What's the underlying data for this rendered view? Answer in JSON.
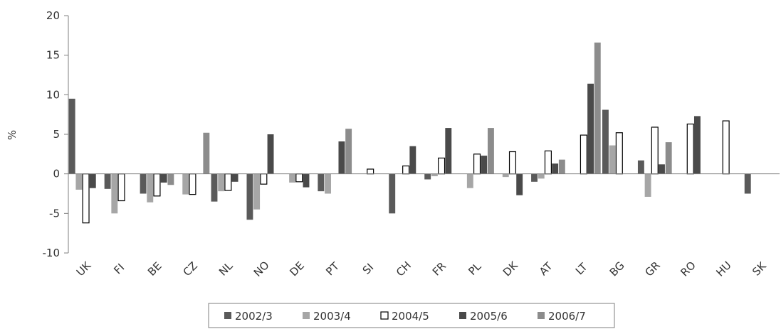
{
  "chart_data": {
    "type": "bar",
    "ylabel": "%",
    "xlabel": "",
    "ylim": [
      -10,
      20
    ],
    "yticks": [
      -10,
      -5,
      0,
      5,
      10,
      15,
      20
    ],
    "legend_position": "bottom",
    "grid": false,
    "categories": [
      "UK",
      "FI",
      "BE",
      "CZ",
      "NL",
      "NO",
      "DE",
      "PT",
      "SI",
      "CH",
      "FR",
      "PL",
      "DK",
      "AT",
      "LT",
      "BG",
      "GR",
      "RO",
      "HU",
      "SK"
    ],
    "series": [
      {
        "name": "2002/3",
        "color": "#5a5a5a",
        "fill": true,
        "values": [
          9.5,
          -1.9,
          -2.5,
          null,
          -3.5,
          -5.8,
          null,
          -2.2,
          null,
          -5.0,
          -0.7,
          null,
          null,
          -1.0,
          null,
          8.1,
          1.7,
          null,
          null,
          -2.5
        ]
      },
      {
        "name": "2003/4",
        "color": "#a6a6a6",
        "fill": true,
        "values": [
          -2.0,
          -5.0,
          -3.6,
          -2.6,
          -2.2,
          -4.5,
          -1.1,
          -2.5,
          null,
          null,
          -0.3,
          -1.8,
          -0.4,
          -0.6,
          null,
          3.6,
          -2.9,
          null,
          null,
          null
        ]
      },
      {
        "name": "2004/5",
        "color": "#ffffff",
        "fill": false,
        "values": [
          -6.2,
          -3.4,
          -2.8,
          -2.6,
          -2.1,
          -1.3,
          -1.0,
          null,
          0.6,
          1.0,
          2.0,
          2.5,
          2.8,
          2.9,
          4.9,
          5.2,
          5.9,
          6.3,
          6.7,
          null
        ]
      },
      {
        "name": "2005/6",
        "color": "#4a4a4a",
        "fill": true,
        "values": [
          -1.8,
          null,
          -1.1,
          null,
          -1.0,
          5.0,
          -1.7,
          4.1,
          null,
          3.5,
          5.8,
          2.3,
          -2.7,
          1.3,
          11.4,
          null,
          1.2,
          7.3,
          null,
          null
        ]
      },
      {
        "name": "2006/7",
        "color": "#8c8c8c",
        "fill": true,
        "values": [
          null,
          null,
          -1.4,
          5.2,
          null,
          null,
          null,
          5.7,
          null,
          null,
          null,
          5.8,
          null,
          1.8,
          16.6,
          null,
          4.0,
          null,
          null,
          null
        ]
      }
    ]
  }
}
